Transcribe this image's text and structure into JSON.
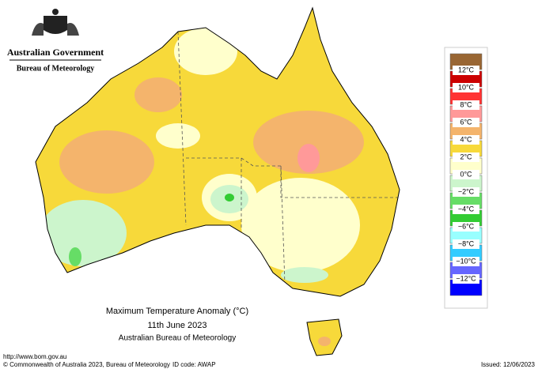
{
  "header": {
    "government": "Australian Government",
    "bureau": "Bureau of Meteorology"
  },
  "map": {
    "title": "Maximum Temperature Anomaly (°C)",
    "date": "11th June 2023",
    "source": "Australian Bureau of Meteorology"
  },
  "legend": {
    "labels": [
      "12°C",
      "10°C",
      "8°C",
      "6°C",
      "4°C",
      "2°C",
      "0°C",
      "−2°C",
      "−4°C",
      "−6°C",
      "−8°C",
      "−10°C",
      "−12°C"
    ],
    "colors": [
      "#996633",
      "#cc0000",
      "#ff3333",
      "#ff9999",
      "#f4b46c",
      "#f7d93a",
      "#ffffcc",
      "#ccf5cc",
      "#66dd66",
      "#33cc33",
      "#99ffff",
      "#33ccff",
      "#6666ff",
      "#0000ff"
    ]
  },
  "footer": {
    "url": "http://www.bom.gov.au",
    "copyright": "© Commonwealth of Australia 2023, Bureau of Meteorology",
    "id": "ID code: AWAP",
    "issued": "Issued: 12/06/2023"
  }
}
